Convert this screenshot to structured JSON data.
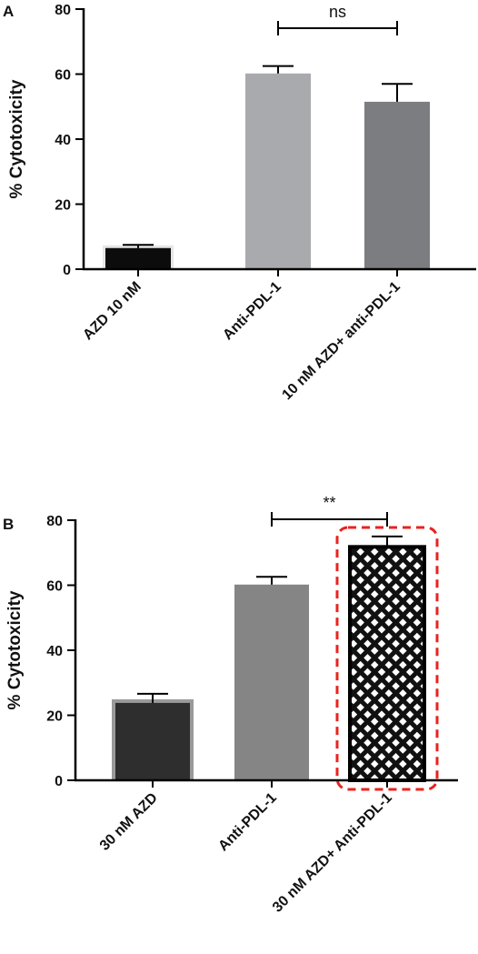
{
  "chart_data": [
    {
      "panel": "A",
      "type": "bar",
      "ylabel": "% Cytotoxicity",
      "xlabel": "",
      "ylim": [
        0,
        80
      ],
      "yticks": [
        0,
        20,
        40,
        60,
        80
      ],
      "categories": [
        "AZD 10 nM",
        "Anti-PDL-1",
        "10 nM AZD+ anti-PDL-1"
      ],
      "values": [
        6.5,
        60.2,
        51.5
      ],
      "error_upper": [
        1.0,
        2.3,
        5.5
      ],
      "bar_colors": [
        "#0c0c0c",
        "#a9aaad",
        "#7c7d80"
      ],
      "significance": [
        {
          "from": 1,
          "to": 2,
          "label": "ns"
        }
      ]
    },
    {
      "panel": "B",
      "type": "bar",
      "ylabel": "% Cytotoxicity",
      "xlabel": "",
      "ylim": [
        0,
        80
      ],
      "yticks": [
        0,
        20,
        40,
        60,
        80
      ],
      "categories": [
        "30 nM AZD",
        "Anti-PDL-1",
        "30 nM AZD+ Anti-PDL-1"
      ],
      "values": [
        23.8,
        60.2,
        71.8
      ],
      "error_upper": [
        2.8,
        2.4,
        3.2
      ],
      "bar_colors": [
        "#2e2e2e",
        "#858585",
        "#ffffff"
      ],
      "bar_patterns": [
        "solid",
        "solid",
        "crosshatch"
      ],
      "significance": [
        {
          "from": 1,
          "to": 2,
          "label": "**"
        }
      ],
      "highlight": {
        "category": 2,
        "color": "#e8231f",
        "style": "dashed"
      }
    }
  ]
}
